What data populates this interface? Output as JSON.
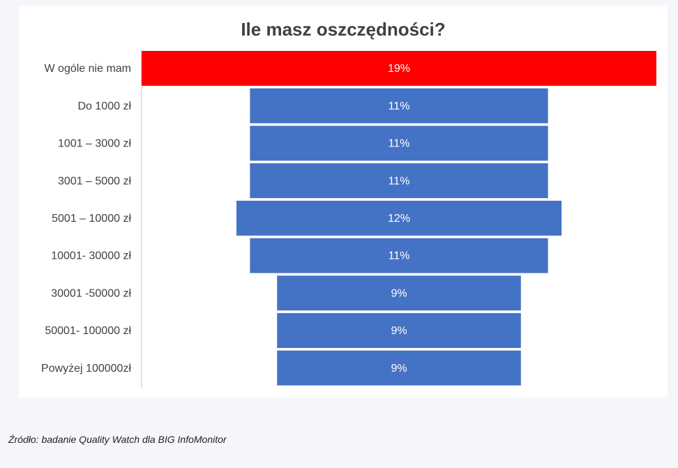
{
  "chart_data": {
    "type": "funnel",
    "title": "Ile masz oszczędności?",
    "categories": [
      "W ogóle nie mam",
      "Do 1000 zł",
      "1001 – 3000 zł",
      "3001 – 5000 zł",
      "5001 – 10000 zł",
      "10001- 30000 zł",
      "30001 -50000 zł",
      "50001- 100000 zł",
      "Powyżej 100000zł"
    ],
    "values": [
      19,
      11,
      11,
      11,
      12,
      11,
      9,
      9,
      9
    ],
    "value_labels": [
      "19%",
      "11%",
      "11%",
      "11%",
      "12%",
      "11%",
      "9%",
      "9%",
      "9%"
    ],
    "colors": [
      "#ff0000",
      "#4472c4",
      "#4472c4",
      "#4472c4",
      "#4472c4",
      "#4472c4",
      "#4472c4",
      "#4472c4",
      "#4472c4"
    ]
  },
  "source": "Źródło: badanie Quality Watch dla BIG InfoMonitor"
}
